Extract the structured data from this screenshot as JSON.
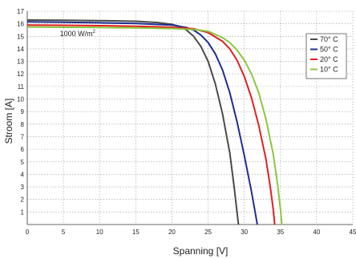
{
  "chart_data": {
    "type": "line",
    "title": "",
    "xlabel": "Spanning [V]",
    "ylabel": "Stroom [A]",
    "xlim": [
      0,
      45
    ],
    "ylim": [
      0,
      17
    ],
    "x_ticks": [
      "0",
      "5",
      "10",
      "15",
      "20",
      "25",
      "30",
      "35",
      "40",
      "45"
    ],
    "y_ticks": [
      "1",
      "2",
      "3",
      "4",
      "5",
      "6",
      "7",
      "8",
      "9",
      "10",
      "11",
      "12",
      "13",
      "14",
      "15",
      "16",
      "17"
    ],
    "grid": true,
    "legend_position": "right",
    "annotations": [
      {
        "text": "1000 W/m",
        "superscript": "2",
        "x": 4.5,
        "y": 15.2
      }
    ],
    "series": [
      {
        "name": "70° C",
        "color": "#4a4a4a",
        "points": [
          [
            0,
            16.3
          ],
          [
            5,
            16.28
          ],
          [
            10,
            16.25
          ],
          [
            15,
            16.2
          ],
          [
            18,
            16.1
          ],
          [
            20,
            15.95
          ],
          [
            21,
            15.8
          ],
          [
            22,
            15.5
          ],
          [
            23,
            15.0
          ],
          [
            24,
            14.2
          ],
          [
            25,
            13.0
          ],
          [
            26,
            11.2
          ],
          [
            27,
            8.8
          ],
          [
            28,
            5.7
          ],
          [
            28.6,
            3.0
          ],
          [
            29.0,
            1.0
          ],
          [
            29.2,
            0
          ]
        ]
      },
      {
        "name": "50° C",
        "color": "#1f2d8f",
        "points": [
          [
            0,
            16.15
          ],
          [
            5,
            16.12
          ],
          [
            10,
            16.08
          ],
          [
            15,
            16.02
          ],
          [
            20,
            15.9
          ],
          [
            22,
            15.7
          ],
          [
            23,
            15.5
          ],
          [
            24,
            15.1
          ],
          [
            25,
            14.5
          ],
          [
            26,
            13.6
          ],
          [
            27,
            12.3
          ],
          [
            28,
            10.5
          ],
          [
            29,
            8.2
          ],
          [
            30,
            5.5
          ],
          [
            31,
            2.6
          ],
          [
            31.5,
            1.0
          ],
          [
            31.8,
            0
          ]
        ]
      },
      {
        "name": "20° C",
        "color": "#e02020",
        "points": [
          [
            0,
            15.9
          ],
          [
            5,
            15.88
          ],
          [
            10,
            15.85
          ],
          [
            15,
            15.8
          ],
          [
            20,
            15.72
          ],
          [
            23,
            15.6
          ],
          [
            25,
            15.3
          ],
          [
            27,
            14.6
          ],
          [
            28,
            14.0
          ],
          [
            29,
            13.1
          ],
          [
            30,
            11.8
          ],
          [
            31,
            10.1
          ],
          [
            32,
            7.9
          ],
          [
            33,
            5.2
          ],
          [
            33.6,
            3.0
          ],
          [
            34.0,
            1.2
          ],
          [
            34.2,
            0
          ]
        ]
      },
      {
        "name": "10° C",
        "color": "#8cc63f",
        "points": [
          [
            0,
            15.75
          ],
          [
            5,
            15.72
          ],
          [
            10,
            15.7
          ],
          [
            15,
            15.68
          ],
          [
            20,
            15.62
          ],
          [
            23,
            15.55
          ],
          [
            25,
            15.4
          ],
          [
            27,
            14.9
          ],
          [
            28,
            14.5
          ],
          [
            29,
            13.9
          ],
          [
            30,
            13.1
          ],
          [
            31,
            12.0
          ],
          [
            32,
            10.5
          ],
          [
            33,
            8.4
          ],
          [
            34,
            5.6
          ],
          [
            34.6,
            3.2
          ],
          [
            35.0,
            1.2
          ],
          [
            35.2,
            0
          ]
        ]
      }
    ]
  }
}
